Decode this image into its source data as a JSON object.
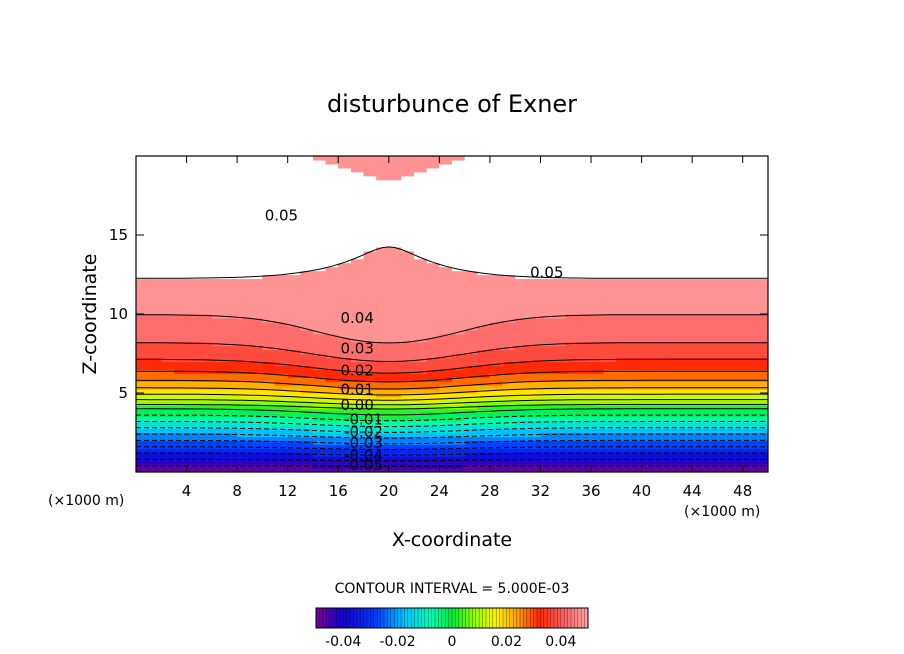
{
  "chart_data": {
    "type": "filled-contour",
    "title": "disturbunce of Exner",
    "xlabel": "X-coordinate",
    "ylabel": "Z-coordinate",
    "x_unit": "(×1000 m)",
    "x_unit_right": "(×1000 m)",
    "xlim": [
      0,
      50
    ],
    "ylim": [
      0,
      20
    ],
    "xticks": [
      "4",
      "8",
      "12",
      "16",
      "20",
      "24",
      "28",
      "32",
      "36",
      "40",
      "44",
      "48"
    ],
    "xtick_values": [
      4,
      8,
      12,
      16,
      20,
      24,
      28,
      32,
      36,
      40,
      44,
      48
    ],
    "yticks": [
      "5",
      "10",
      "15"
    ],
    "ytick_values": [
      5,
      10,
      15
    ],
    "contour_interval_text": "CONTOUR INTERVAL = 5.000E-03",
    "contour_interval": 0.005,
    "contour_labels": [
      {
        "text": "0.05",
        "x": 11.5,
        "z": 16.2
      },
      {
        "text": "0.05",
        "x": 32.5,
        "z": 12.6
      },
      {
        "text": "0.04",
        "x": 17.5,
        "z": 9.7
      },
      {
        "text": "0.03",
        "x": 17.5,
        "z": 7.8
      },
      {
        "text": "0.02",
        "x": 17.5,
        "z": 6.4
      },
      {
        "text": "0.01",
        "x": 17.5,
        "z": 5.2
      },
      {
        "text": "0.00",
        "x": 17.5,
        "z": 4.2
      },
      {
        "text": "-0.01",
        "x": 18,
        "z": 3.3
      },
      {
        "text": "-0.02",
        "x": 18,
        "z": 2.5
      },
      {
        "text": "-0.03",
        "x": 18,
        "z": 1.8
      },
      {
        "text": "-0.04",
        "x": 18,
        "z": 1.0
      },
      {
        "text": "-0.05",
        "x": 18,
        "z": 0.4
      }
    ],
    "colorbar": {
      "min": -0.05,
      "max": 0.05,
      "tick_labels": [
        "-0.04",
        "-0.02",
        "0",
        "0.02",
        "0.04"
      ],
      "tick_values": [
        -0.04,
        -0.02,
        0,
        0.02,
        0.04
      ]
    },
    "field_description_values": {
      "min_value": -0.05,
      "max_value": 0.05,
      "zero_line_z_at_center": 4.2,
      "zero_line_z_at_edges": 3.8
    }
  }
}
